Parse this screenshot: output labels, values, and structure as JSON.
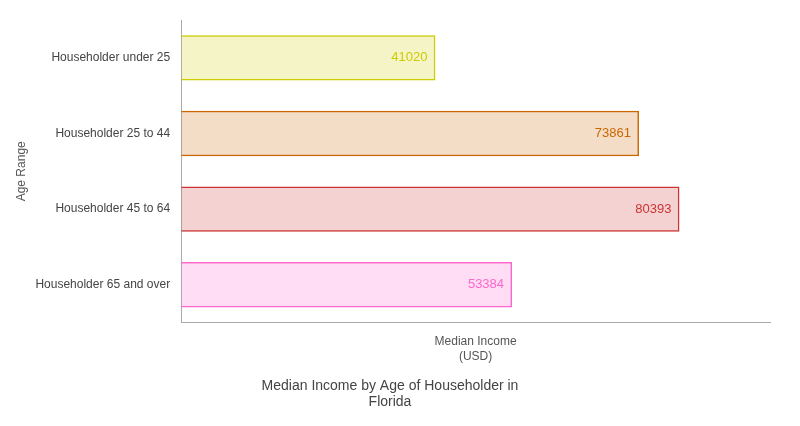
{
  "chart_data": {
    "type": "bar",
    "orientation": "horizontal",
    "title": "Median Income by Age of Householder in\nFlorida",
    "xlabel": "Median Income\n(USD)",
    "ylabel": "Age Range",
    "categories": [
      "Householder under 25",
      "Householder 25 to 44",
      "Householder 45 to 64",
      "Householder 65 and over"
    ],
    "values": [
      41020,
      73861,
      80393,
      53384
    ],
    "colors": [
      "#cccc00",
      "#cc6600",
      "#cc3333",
      "#ff66cc"
    ],
    "xlim": [
      0,
      95000
    ],
    "grid": false,
    "data_labels": true,
    "tick_labels": "y"
  }
}
